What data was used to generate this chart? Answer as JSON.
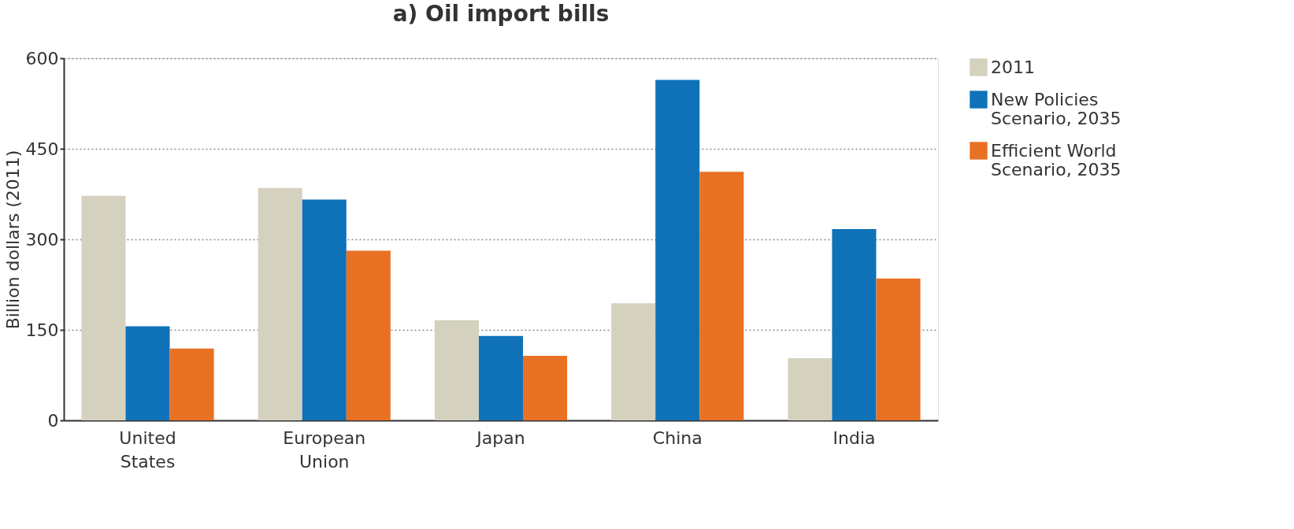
{
  "chart_data": {
    "type": "bar",
    "title": "a)    Oil import bills",
    "ylabel": "Billion dollars (2011)",
    "categories": [
      "United States",
      "European Union",
      "Japan",
      "China",
      "India"
    ],
    "series": [
      {
        "name": "2011",
        "color": "#d4d2be",
        "values": [
          372,
          385,
          166,
          194,
          103
        ]
      },
      {
        "name": "New Policies Scenario, 2035",
        "color": "#0f72b8",
        "values": [
          156,
          366,
          140,
          564,
          317
        ]
      },
      {
        "name": "Efficient World Scenario, 2035",
        "color": "#e87124",
        "values": [
          119,
          281,
          107,
          412,
          235
        ]
      }
    ],
    "ylim": [
      0,
      600
    ],
    "yticks": [
      0,
      150,
      300,
      450,
      600
    ],
    "grid": "y",
    "legend": "top right"
  }
}
